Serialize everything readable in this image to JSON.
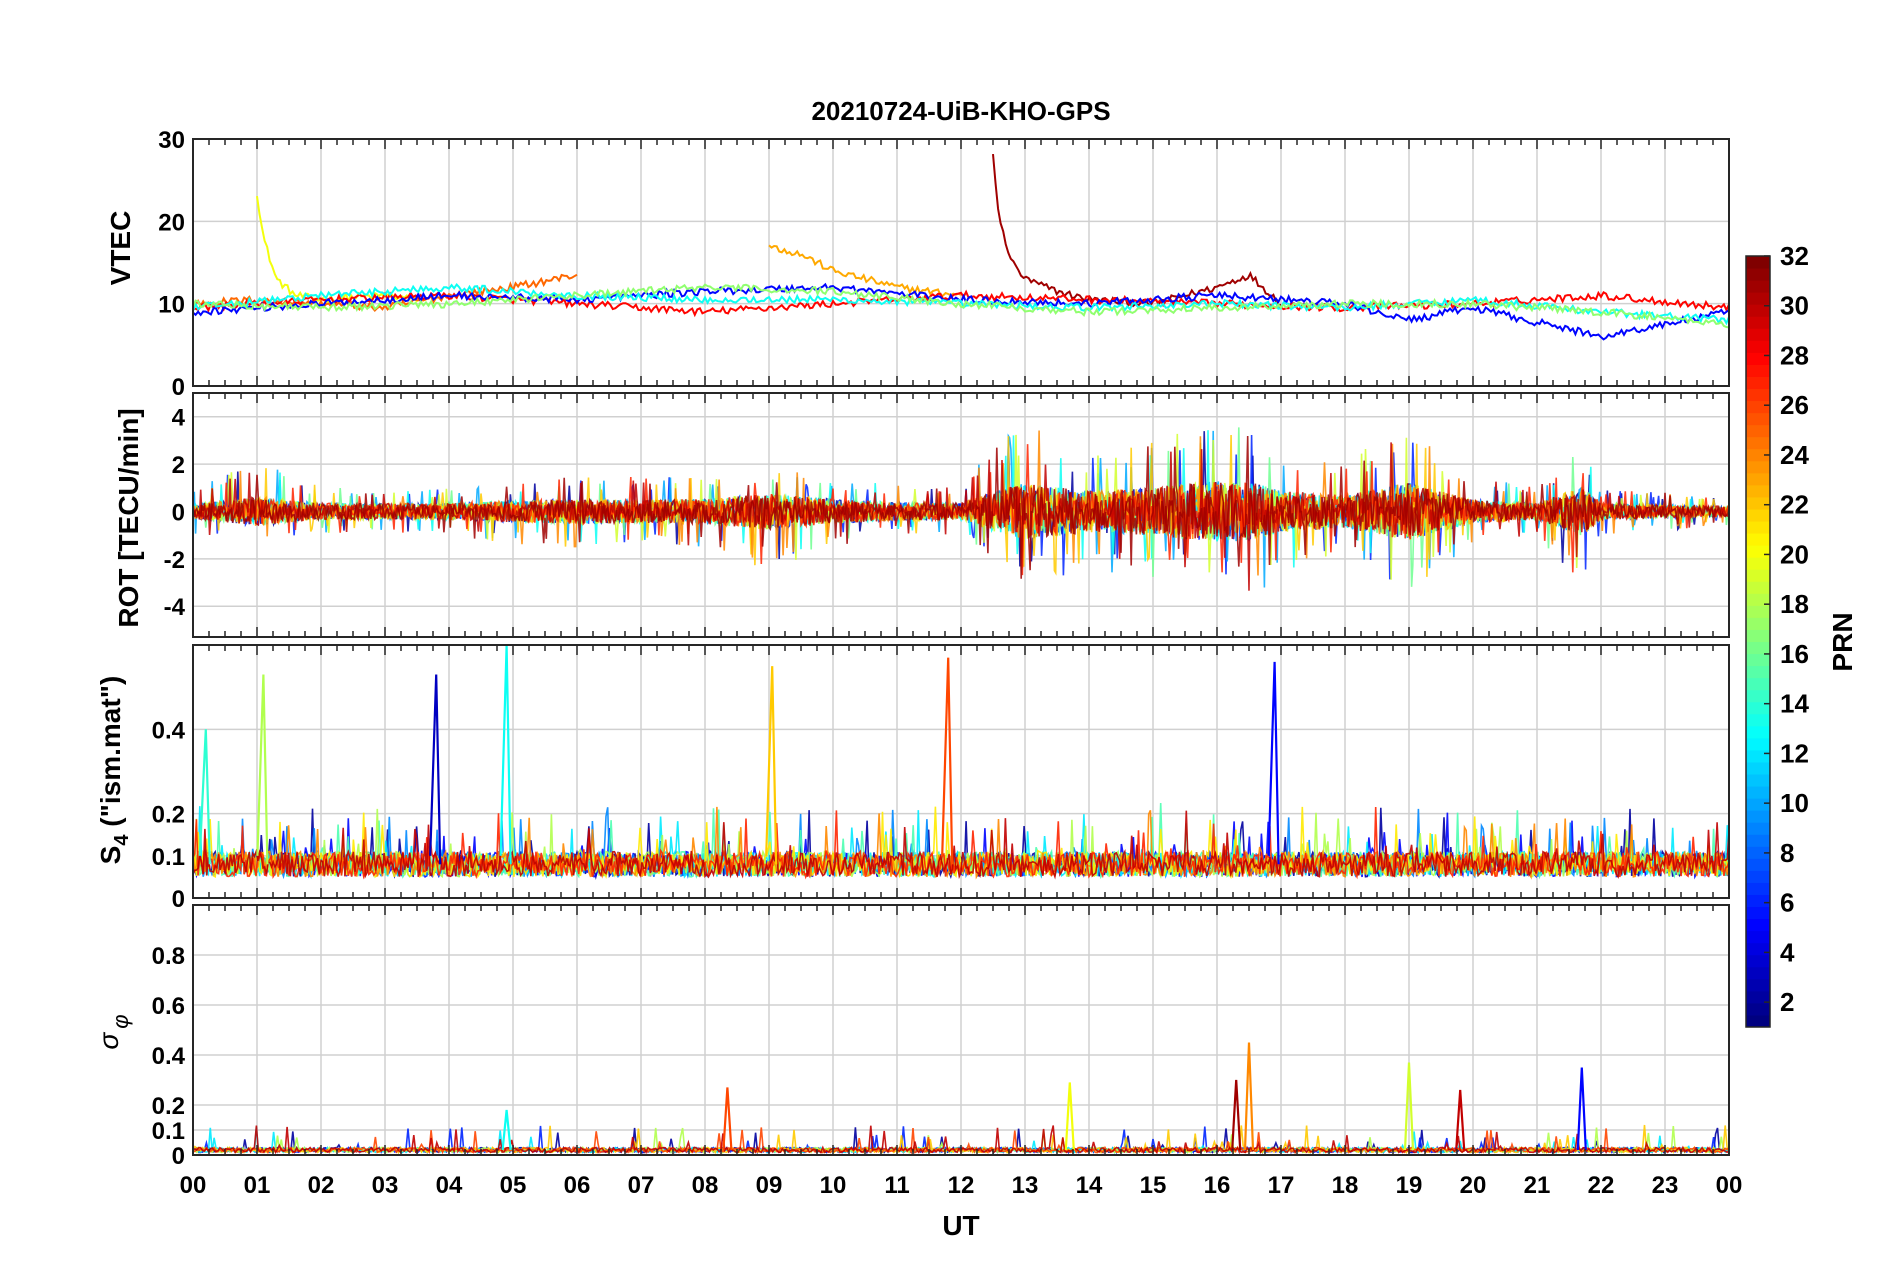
{
  "figure": {
    "title": "20210724-UiB-KHO-GPS",
    "xlabel": "UT",
    "x_tick_labels": [
      "00",
      "01",
      "02",
      "03",
      "04",
      "05",
      "06",
      "07",
      "08",
      "09",
      "10",
      "11",
      "12",
      "13",
      "14",
      "15",
      "16",
      "17",
      "18",
      "19",
      "20",
      "21",
      "22",
      "23",
      "00"
    ]
  },
  "colorbar": {
    "label": "PRN",
    "range": [
      1,
      32
    ],
    "ticks": [
      2,
      4,
      6,
      8,
      10,
      12,
      14,
      16,
      18,
      20,
      22,
      24,
      26,
      28,
      30,
      32
    ],
    "colormap": "jet",
    "colors": [
      "#00008f",
      "#0000ff",
      "#0080ff",
      "#00ffff",
      "#80ff80",
      "#ffff00",
      "#ff8000",
      "#ff0000",
      "#800000"
    ]
  },
  "chart_data": [
    {
      "type": "line",
      "panel": "vtec",
      "ylabel": "VTEC",
      "xlim": [
        0,
        24
      ],
      "ylim": [
        0,
        30
      ],
      "yticks": [
        0,
        10,
        20,
        30
      ],
      "grid": true,
      "series_note": "one line per GPS PRN, colored by PRN",
      "series": [
        {
          "prn": 20,
          "x": [
            1.0,
            1.1,
            1.3,
            1.6,
            2.0,
            2.5,
            3.0,
            3.5
          ],
          "y": [
            23.5,
            18,
            13,
            11,
            10.5,
            10.8,
            11,
            10.5
          ]
        },
        {
          "prn": 31,
          "x": [
            12.5,
            12.6,
            12.8,
            13.0,
            13.5,
            14.0,
            15.0,
            16.0,
            16.5,
            17.0
          ],
          "y": [
            28,
            20,
            15,
            13,
            11.5,
            10.5,
            10,
            12,
            13.5,
            10
          ]
        },
        {
          "prn": 23,
          "x": [
            9.0,
            9.5,
            10.0,
            10.5,
            11.0,
            12.0
          ],
          "y": [
            17,
            16,
            14,
            13,
            12,
            11
          ]
        },
        {
          "prn": 25,
          "x": [
            0,
            1,
            2,
            3,
            4,
            5,
            6
          ],
          "y": [
            10,
            10.5,
            10,
            9.5,
            11,
            12,
            13.5
          ]
        },
        {
          "prn": 28,
          "x": [
            0,
            2,
            4,
            6,
            8,
            10,
            12,
            14,
            16,
            18,
            20,
            22,
            24
          ],
          "y": [
            9.5,
            10.5,
            11,
            10,
            9,
            10,
            11,
            10.5,
            10,
            9.5,
            10,
            11,
            9.5
          ]
        },
        {
          "prn": 5,
          "x": [
            0,
            2,
            4,
            6,
            8,
            10,
            12,
            14,
            16,
            18,
            19,
            20,
            22,
            24
          ],
          "y": [
            9,
            10,
            11,
            10.5,
            11.5,
            12,
            10.5,
            10,
            11,
            10,
            8,
            9.5,
            6,
            9
          ]
        },
        {
          "prn": 13,
          "x": [
            0,
            2,
            4,
            6,
            8,
            10,
            12,
            14,
            16,
            18,
            20,
            22,
            24
          ],
          "y": [
            9.5,
            11,
            12,
            11,
            10.5,
            10.5,
            10,
            9.5,
            10,
            9.5,
            10.5,
            9,
            8
          ]
        },
        {
          "prn": 17,
          "x": [
            0,
            2,
            4,
            6,
            8,
            10,
            12,
            14,
            16,
            18,
            20,
            22,
            24
          ],
          "y": [
            10,
            9.5,
            10,
            11,
            12,
            11.5,
            10,
            9,
            9.5,
            10,
            10,
            9,
            7.5
          ]
        }
      ]
    },
    {
      "type": "line",
      "panel": "rot",
      "ylabel": "ROT [TECU/min]",
      "xlim": [
        0,
        24
      ],
      "ylim": [
        -5.3,
        5
      ],
      "yticks": [
        -4,
        -2,
        0,
        2,
        4
      ],
      "grid": true,
      "series_note": "rate of TEC, noisy around 0, larger variance 12.5-17 UT",
      "envelope": {
        "x": [
          0,
          1,
          2,
          3,
          4,
          5,
          6,
          7,
          8,
          9,
          10,
          11,
          12,
          12.5,
          13,
          13.5,
          14,
          15,
          15.5,
          16,
          16.5,
          17,
          18,
          19,
          20,
          21,
          21.7,
          22,
          23,
          24
        ],
        "max": [
          0.8,
          2.4,
          1,
          1,
          1,
          1.2,
          1.5,
          1.5,
          1.5,
          1.8,
          1.5,
          1.2,
          1,
          2.8,
          3.8,
          3,
          2.5,
          3,
          4.3,
          4.3,
          3.5,
          2,
          2.5,
          3.4,
          1.5,
          1,
          2.8,
          1,
          0.8,
          0.6
        ],
        "min": [
          -1,
          -1.1,
          -1,
          -0.9,
          -1,
          -1.4,
          -1.5,
          -1.3,
          -1.5,
          -2.5,
          -1.5,
          -1,
          -1,
          -2,
          -3,
          -3,
          -2.5,
          -2.8,
          -2.4,
          -3,
          -3.7,
          -3,
          -1.5,
          -3.6,
          -1.3,
          -1,
          -3.2,
          -1,
          -0.8,
          -0.6
        ]
      }
    },
    {
      "type": "line",
      "panel": "s4",
      "ylabel": "S4 (\"ism.mat\")",
      "xlim": [
        0,
        24
      ],
      "ylim": [
        0,
        0.6
      ],
      "yticks": [
        0,
        0.1,
        0.2,
        0.4
      ],
      "grid": true,
      "series_note": "S4 index per PRN, baseline 0.05-0.1 with spikes",
      "spikes": [
        {
          "x": 1.1,
          "y": 0.53,
          "prn": 18
        },
        {
          "x": 3.8,
          "y": 0.53,
          "prn": 3
        },
        {
          "x": 4.9,
          "y": 0.6,
          "prn": 13
        },
        {
          "x": 9.05,
          "y": 0.55,
          "prn": 22
        },
        {
          "x": 11.8,
          "y": 0.57,
          "prn": 26
        },
        {
          "x": 16.9,
          "y": 0.56,
          "prn": 5
        },
        {
          "x": 0.2,
          "y": 0.4,
          "prn": 14
        }
      ]
    },
    {
      "type": "line",
      "panel": "sigma_phi",
      "ylabel": "σ φ",
      "xlim": [
        0,
        24
      ],
      "ylim": [
        0,
        1
      ],
      "yticks": [
        0,
        0.1,
        0.2,
        0.4,
        0.6,
        0.8
      ],
      "grid": true,
      "series_note": "phase scintillation index per PRN, near zero with spikes",
      "spikes": [
        {
          "x": 4.9,
          "y": 0.18,
          "prn": 13
        },
        {
          "x": 8.35,
          "y": 0.27,
          "prn": 26
        },
        {
          "x": 13.7,
          "y": 0.29,
          "prn": 20
        },
        {
          "x": 16.3,
          "y": 0.3,
          "prn": 31
        },
        {
          "x": 16.5,
          "y": 0.45,
          "prn": 24
        },
        {
          "x": 19.0,
          "y": 0.37,
          "prn": 19
        },
        {
          "x": 19.8,
          "y": 0.26,
          "prn": 30
        },
        {
          "x": 21.7,
          "y": 0.35,
          "prn": 5
        }
      ]
    }
  ]
}
